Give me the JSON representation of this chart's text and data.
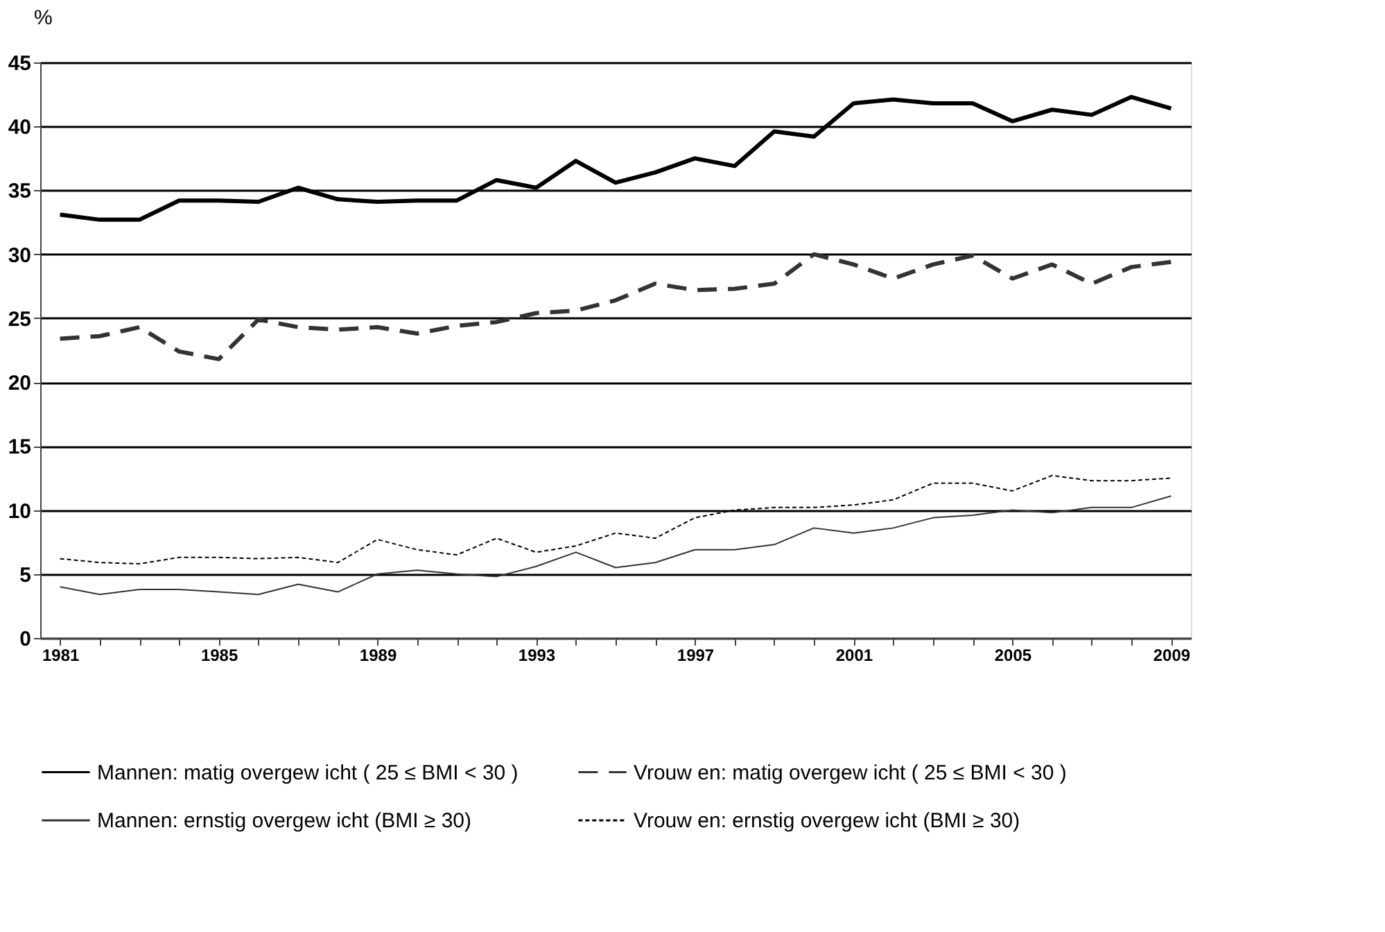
{
  "chart_data": {
    "type": "line",
    "ylabel": "%",
    "x": [
      1981,
      1982,
      1983,
      1984,
      1985,
      1986,
      1987,
      1988,
      1989,
      1990,
      1991,
      1992,
      1993,
      1994,
      1995,
      1996,
      1997,
      1998,
      1999,
      2000,
      2001,
      2002,
      2003,
      2004,
      2005,
      2006,
      2007,
      2008,
      2009
    ],
    "xlim": [
      1980.5,
      2009.5
    ],
    "xticks": [
      {
        "value": 1981,
        "label": "1981"
      },
      {
        "value": 1982,
        "label": null
      },
      {
        "value": 1983,
        "label": null
      },
      {
        "value": 1984,
        "label": null
      },
      {
        "value": 1985,
        "label": "1985"
      },
      {
        "value": 1986,
        "label": null
      },
      {
        "value": 1987,
        "label": null
      },
      {
        "value": 1988,
        "label": null
      },
      {
        "value": 1989,
        "label": "1989"
      },
      {
        "value": 1990,
        "label": null
      },
      {
        "value": 1991,
        "label": null
      },
      {
        "value": 1992,
        "label": null
      },
      {
        "value": 1993,
        "label": "1993"
      },
      {
        "value": 1994,
        "label": null
      },
      {
        "value": 1995,
        "label": null
      },
      {
        "value": 1996,
        "label": null
      },
      {
        "value": 1997,
        "label": "1997"
      },
      {
        "value": 1998,
        "label": null
      },
      {
        "value": 1999,
        "label": null
      },
      {
        "value": 2000,
        "label": null
      },
      {
        "value": 2001,
        "label": "2001"
      },
      {
        "value": 2002,
        "label": null
      },
      {
        "value": 2003,
        "label": null
      },
      {
        "value": 2004,
        "label": null
      },
      {
        "value": 2005,
        "label": "2005"
      },
      {
        "value": 2006,
        "label": null
      },
      {
        "value": 2007,
        "label": null
      },
      {
        "value": 2008,
        "label": null
      },
      {
        "value": 2009,
        "label": "2009"
      }
    ],
    "ylim": [
      0,
      45
    ],
    "yticks": [
      0,
      5,
      10,
      15,
      20,
      25,
      30,
      35,
      40,
      45
    ],
    "grid": "y",
    "legend": "bottom",
    "marker": "none",
    "series": [
      {
        "name": "Mannen: matig overgew icht ( 25 ≤ BMI < 30 )",
        "color": "#000000",
        "line_style": "solid",
        "values": [
          33.1,
          32.7,
          32.7,
          34.2,
          34.2,
          34.1,
          35.2,
          34.3,
          34.1,
          34.2,
          34.2,
          35.8,
          35.2,
          37.3,
          35.6,
          36.4,
          37.5,
          36.9,
          39.6,
          39.2,
          41.8,
          42.1,
          41.8,
          41.8,
          40.4,
          41.3,
          40.9,
          42.3,
          41.4
        ]
      },
      {
        "name": "Vrouw en: matig overgew icht ( 25 ≤ BMI < 30 )",
        "color": "#333333",
        "line_style": "dashed",
        "values": [
          23.4,
          23.6,
          24.3,
          22.4,
          21.8,
          24.9,
          24.3,
          24.1,
          24.3,
          23.8,
          24.4,
          24.7,
          25.4,
          25.6,
          26.4,
          27.7,
          27.2,
          27.3,
          27.7,
          30.0,
          29.2,
          28.1,
          29.2,
          29.9,
          28.1,
          29.2,
          27.7,
          29.0,
          29.4
        ]
      },
      {
        "name": "Mannen: ernstig overgew icht (BMI ≥ 30)",
        "color": "#333333",
        "line_style": "solid",
        "values": [
          4.0,
          3.4,
          3.8,
          3.8,
          3.6,
          3.4,
          4.2,
          3.6,
          5.0,
          5.3,
          5.0,
          4.8,
          5.6,
          6.7,
          5.5,
          5.9,
          6.9,
          6.9,
          7.3,
          8.6,
          8.2,
          8.6,
          9.4,
          9.6,
          10.0,
          9.8,
          10.2,
          10.2,
          11.1
        ]
      },
      {
        "name": "Vrouw en: ernstig overgew icht (BMI ≥ 30)",
        "color": "#000000",
        "line_style": "dashed",
        "values": [
          6.2,
          5.9,
          5.8,
          6.3,
          6.3,
          6.2,
          6.3,
          5.9,
          7.7,
          6.9,
          6.5,
          7.8,
          6.7,
          7.2,
          8.2,
          7.8,
          9.4,
          10.0,
          10.2,
          10.2,
          10.4,
          10.8,
          12.1,
          12.1,
          11.5,
          12.7,
          12.3,
          12.3,
          12.5
        ]
      }
    ]
  }
}
